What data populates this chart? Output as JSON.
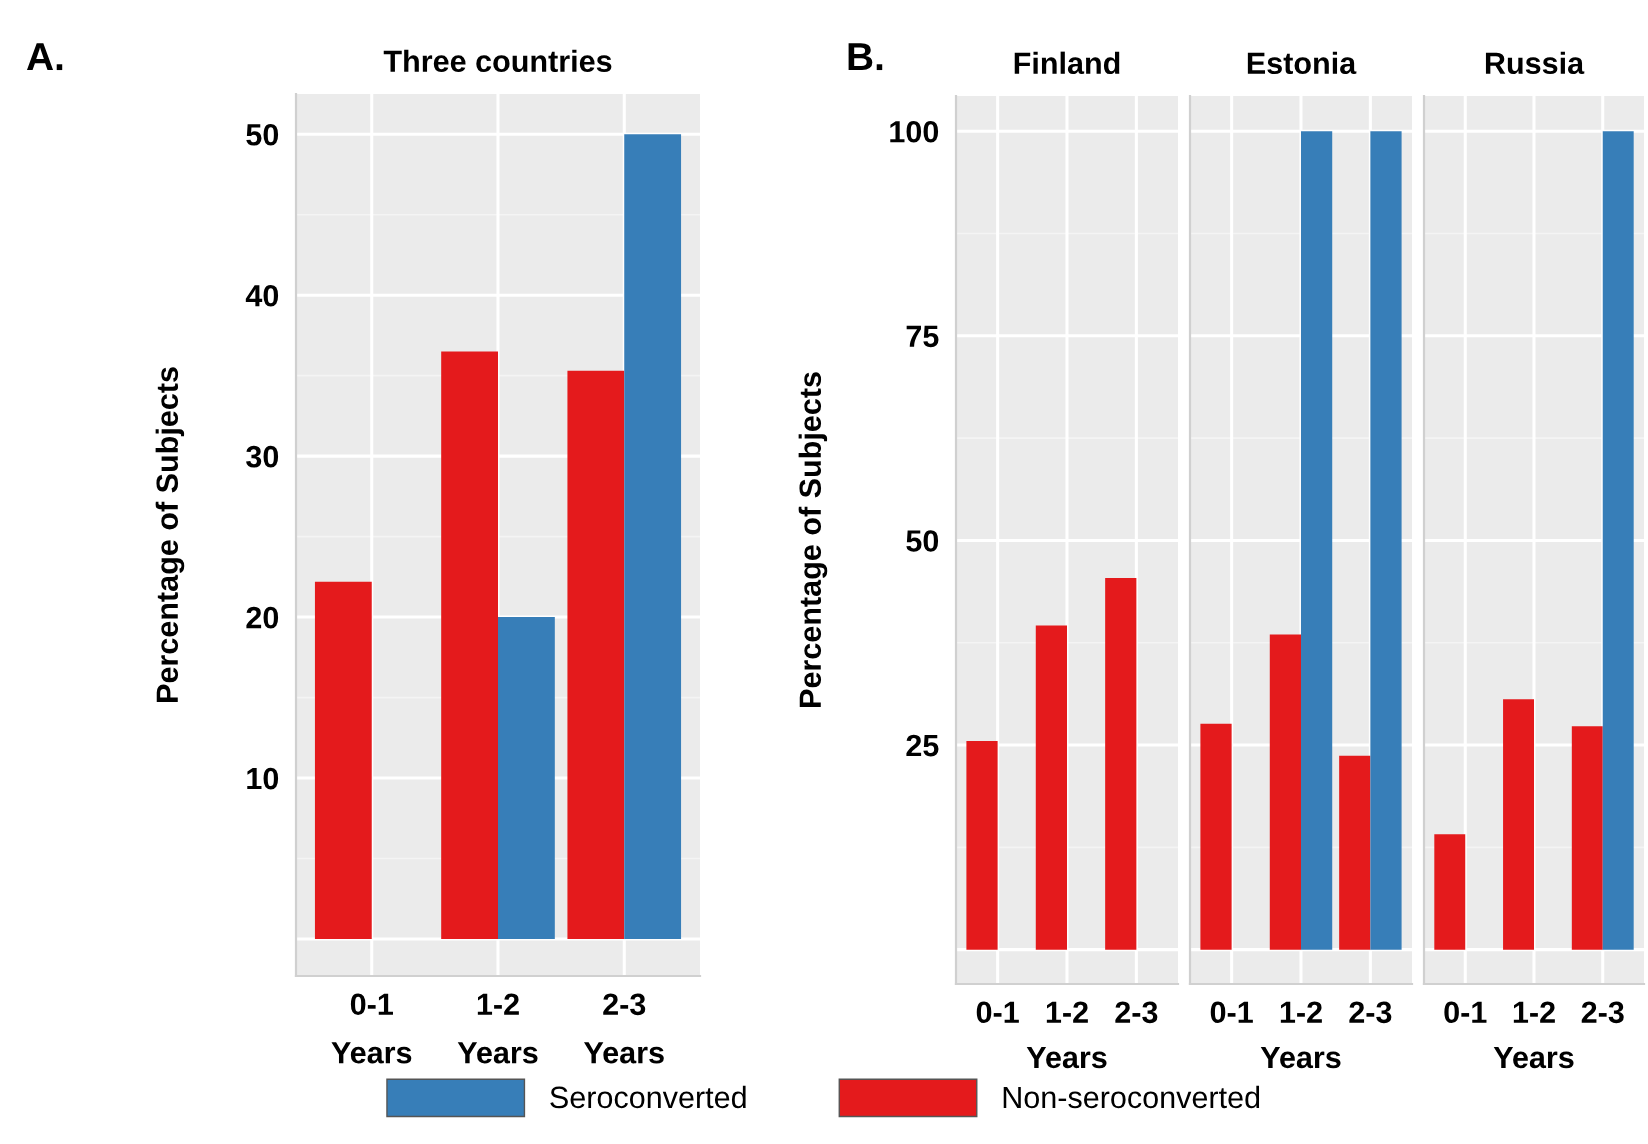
{
  "chart_data": [
    {
      "type": "bar",
      "title": "Three countries",
      "ylabel": "Percentage of Subjects",
      "categories": [
        "0-1\nYears",
        "1-2\nYears",
        "2-3\nYears"
      ],
      "series": [
        {
          "name": "Non-seroconverted",
          "color": "#e41a1c",
          "values": [
            22.2,
            36.5,
            35.3
          ]
        },
        {
          "name": "Seroconverted",
          "color": "#377eb8",
          "values": [
            null,
            20.0,
            50.0
          ]
        }
      ],
      "ylim": [
        -2.3,
        52.5
      ],
      "yticks": [
        10,
        20,
        30,
        40,
        50
      ],
      "grid": true,
      "legend": "bottom",
      "annotations": [
        "A."
      ]
    },
    {
      "type": "bar",
      "title": "Finland",
      "xlabel": "Years",
      "ylabel": "Percentage of Subjects",
      "categories": [
        "0-1",
        "1-2",
        "2-3"
      ],
      "series": [
        {
          "color": "#e41a1c",
          "values": [
            25.5,
            39.6,
            45.4
          ]
        },
        {
          "color": "#377eb8",
          "values": [
            null,
            null,
            null
          ]
        }
      ],
      "ylim": [
        -4.2,
        104.3
      ],
      "yticks": [
        25,
        50,
        75,
        100
      ],
      "grid": true,
      "annotations": [
        "B."
      ]
    },
    {
      "type": "bar",
      "title": "Estonia",
      "xlabel": "Years",
      "categories": [
        "0-1",
        "1-2",
        "2-3"
      ],
      "series": [
        {
          "color": "#e41a1c",
          "values": [
            27.6,
            38.5,
            23.7
          ]
        },
        {
          "color": "#377eb8",
          "values": [
            null,
            100,
            100
          ]
        }
      ],
      "ylim": [
        -4.2,
        104.3
      ],
      "yticks": [
        25,
        50,
        75,
        100
      ],
      "grid": true,
      "tick_labels": "x"
    },
    {
      "type": "bar",
      "title": "Russia",
      "xlabel": "Years",
      "categories": [
        "0-1",
        "1-2",
        "2-3"
      ],
      "series": [
        {
          "color": "#e41a1c",
          "values": [
            14.1,
            30.6,
            27.3
          ]
        },
        {
          "color": "#377eb8",
          "values": [
            null,
            null,
            100
          ]
        }
      ],
      "ylim": [
        -4.2,
        104.3
      ],
      "yticks": [
        25,
        50,
        75,
        100
      ],
      "grid": true,
      "tick_labels": "x"
    }
  ]
}
